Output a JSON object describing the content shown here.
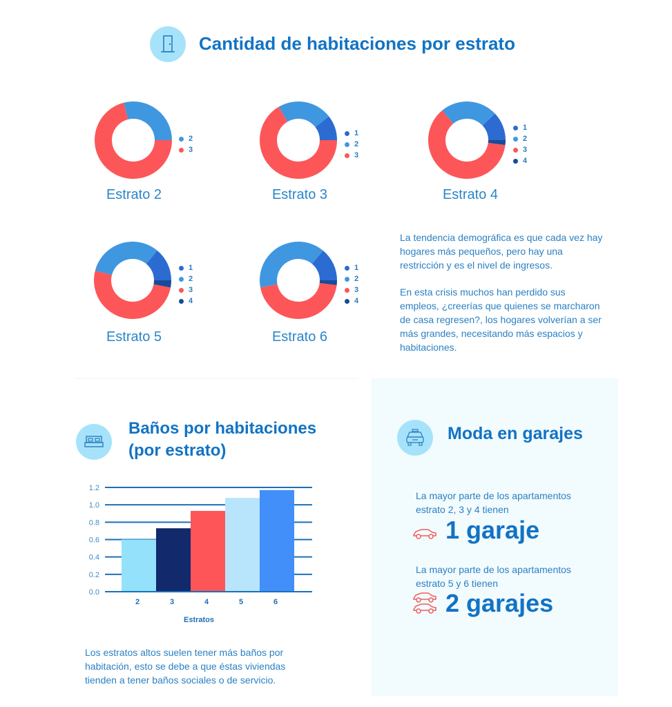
{
  "header": {
    "title": "Cantidad de habitaciones por estrato",
    "icon": "door-icon"
  },
  "colors": {
    "1": "#2c6bd1",
    "2": "#3f97e0",
    "3": "#fd5659",
    "4": "#184a97"
  },
  "chart_data": [
    {
      "type": "pie",
      "title": "Estrato 2",
      "labels": [
        "2",
        "3"
      ],
      "keys": [
        "2",
        "3"
      ],
      "values": [
        29,
        71
      ]
    },
    {
      "type": "pie",
      "title": "Estrato 3",
      "labels": [
        "1",
        "2",
        "3"
      ],
      "keys": [
        "1",
        "2",
        "3"
      ],
      "values": [
        10.5,
        23,
        66.5
      ]
    },
    {
      "type": "pie",
      "title": "Estrato 4",
      "labels": [
        "1",
        "2",
        "3",
        "4"
      ],
      "keys": [
        "1",
        "2",
        "3",
        "4"
      ],
      "values": [
        12,
        24,
        62,
        2
      ]
    },
    {
      "type": "pie",
      "title": "Estrato 5",
      "labels": [
        "1",
        "2",
        "3",
        "4"
      ],
      "keys": [
        "1",
        "2",
        "3",
        "4"
      ],
      "values": [
        14,
        32,
        51,
        3
      ]
    },
    {
      "type": "pie",
      "title": "Estrato 6",
      "labels": [
        "1",
        "2",
        "3",
        "4"
      ],
      "keys": [
        "1",
        "2",
        "3",
        "4"
      ],
      "values": [
        14,
        39,
        45,
        2
      ]
    },
    {
      "type": "bar",
      "title": "Baños por habitaciones (por estrato)",
      "categories": [
        "2",
        "3",
        "4",
        "5",
        "6"
      ],
      "values": [
        0.6,
        0.73,
        0.93,
        1.08,
        1.17
      ],
      "colors": [
        "#93e1fb",
        "#12296c",
        "#fd5558",
        "#b8e5fb",
        "#428ff9"
      ],
      "xlabel": "Estratos",
      "ylabel": "",
      "ylim": [
        0,
        1.2
      ],
      "yticks": [
        "0.0",
        "0.2",
        "0.4",
        "0.6",
        "0.8",
        "1.0",
        "1.2"
      ],
      "grid": true
    }
  ],
  "intro": {
    "p1": "La tendencia demográfica es que cada vez hay hogares más pequeños, pero hay una restricción y es el nivel de ingresos.",
    "p2": "En esta crisis muchos han perdido sus empleos, ¿creerías que quienes se marcharon de casa regresen?, los hogares volverían a ser más grandes, necesitando más espacios y habitaciones."
  },
  "banos": {
    "title_line1": "Baños por habitaciones",
    "title_line2": "(por estrato)",
    "icon": "bed-icon",
    "note": "Los estratos altos suelen tener más baños por habitación, esto se debe a que éstas viviendas tienden a tener baños sociales o de servicio."
  },
  "garajes": {
    "title": "Moda en garajes",
    "icon": "taxi-icon",
    "text1": "La mayor parte de los apartamentos estrato 2, 3 y 4 tienen",
    "value1": "1 garaje",
    "text2": "La mayor parte de los apartamentos estrato 5 y 6 tienen",
    "value2": "2 garajes"
  }
}
